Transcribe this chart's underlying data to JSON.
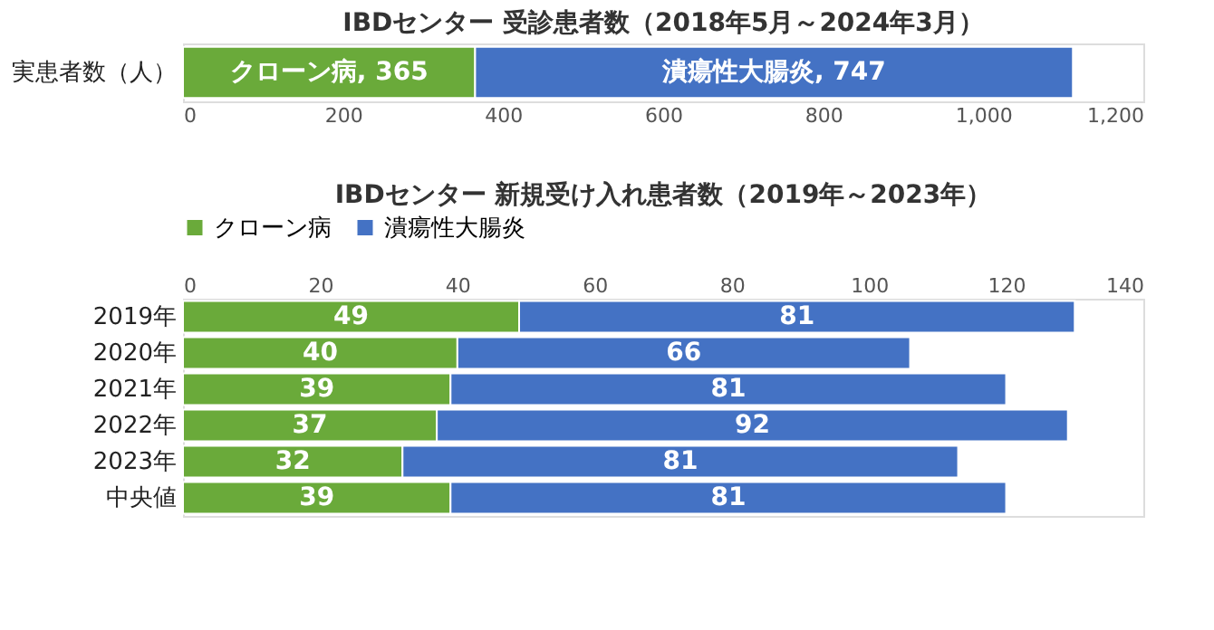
{
  "chart_data": [
    {
      "type": "bar",
      "orientation": "horizontal",
      "stacked": true,
      "title": "IBDセンター 受診患者数（2018年5月～2024年3月）",
      "categories": [
        "実患者数（人）"
      ],
      "series": [
        {
          "color": "#6aaa3a",
          "values": [
            365
          ],
          "value_labels": [
            "クローン病, 365"
          ]
        },
        {
          "color": "#4472c4",
          "values": [
            747
          ],
          "value_labels": [
            "潰瘍性大腸炎, 747"
          ]
        }
      ],
      "xlim": [
        0,
        1200
      ],
      "xticks": [
        0,
        200,
        400,
        600,
        800,
        {
          "value": 1000,
          "label": "1,000"
        },
        {
          "value": 1200,
          "label": "1,200"
        }
      ],
      "grid": false,
      "legend": false
    },
    {
      "type": "bar",
      "orientation": "horizontal",
      "stacked": true,
      "title": "IBDセンター 新規受け入れ患者数（2019年～2023年）",
      "categories": [
        "2019年",
        "2020年",
        "2021年",
        "2022年",
        "2023年",
        "中央値"
      ],
      "series": [
        {
          "name": "クローン病",
          "color": "#6aaa3a",
          "values": [
            49,
            40,
            39,
            37,
            32,
            39
          ]
        },
        {
          "name": "潰瘍性大腸炎",
          "color": "#4472c4",
          "values": [
            81,
            66,
            81,
            92,
            81,
            81
          ]
        }
      ],
      "xlim": [
        0,
        140
      ],
      "xticks": [
        0,
        20,
        40,
        60,
        80,
        100,
        120,
        140
      ],
      "data_labels": true,
      "grid": false,
      "legend": "top"
    }
  ]
}
